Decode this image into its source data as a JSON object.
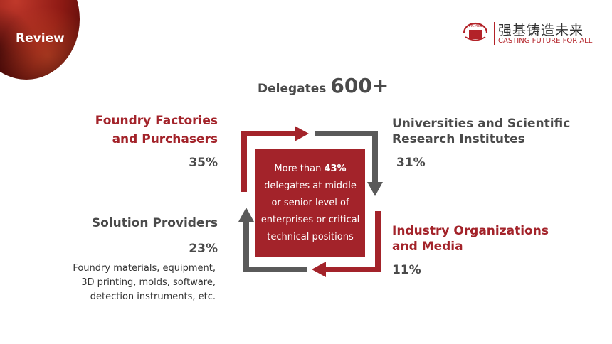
{
  "header": {
    "section_label": "Review",
    "logo_cn": "强基铸造未来",
    "logo_en": "CASTING FUTURE FOR ALL",
    "emblem_text": "FICMES"
  },
  "headline": {
    "label": "Delegates",
    "value": "600+"
  },
  "segments": {
    "foundry": {
      "title_line1": "Foundry Factories",
      "title_line2": "and Purchasers",
      "percent": "35%"
    },
    "universities": {
      "title_line1": "Universities and Scientific",
      "title_line2": "Research Institutes",
      "percent": "31%"
    },
    "solution": {
      "title": "Solution Providers",
      "percent": "23%",
      "desc_line1": "Foundry materials, equipment,",
      "desc_line2": "3D printing, molds, software,",
      "desc_line3": "detection instruments, etc."
    },
    "industry": {
      "title_line1": "Industry Organizations",
      "title_line2": "and Media",
      "percent": "11%"
    }
  },
  "center": {
    "prefix": "More than ",
    "highlight": "43%",
    "line2": "delegates at middle",
    "line3": "or senior level of",
    "line4": "enterprises or critical",
    "line5": "technical positions"
  },
  "colors": {
    "accent_red": "#a3232a",
    "arrow_gray": "#5a5a5a",
    "text_dark": "#4a4a4a"
  }
}
